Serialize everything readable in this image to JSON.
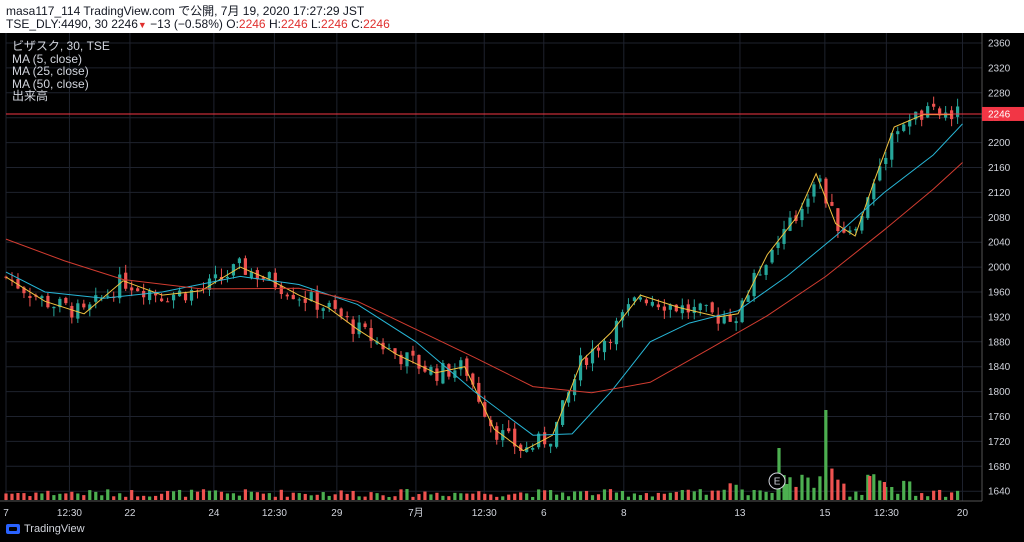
{
  "header": {
    "publish_line": "masa117_114 TradingView.com で公開, 7月 19, 2020 17:27:29 JST",
    "symbol": "TSE_DLY:4490, 30",
    "last": "2246",
    "change_arrow": "▼",
    "change": "−13 (−0.58%)",
    "o_label": "O:",
    "o_value": "2246",
    "h_label": "H:",
    "h_value": "2246",
    "l_label": "L:",
    "l_value": "2246",
    "c_label": "C:",
    "c_value": "2246"
  },
  "legend": {
    "title": "ビザスク, 30, TSE",
    "ma5": "MA (5, close)",
    "ma25": "MA (25, close)",
    "ma50": "MA (50, close)",
    "volume": "出来高"
  },
  "price_axis": {
    "ticks": [
      "2360",
      "2320",
      "2280",
      "2240",
      "2200",
      "2160",
      "2120",
      "2080",
      "2040",
      "2000",
      "1960",
      "1920",
      "1880",
      "1840",
      "1800",
      "1760",
      "1720",
      "1680",
      "1640"
    ],
    "last_price_label": "2246"
  },
  "time_axis": {
    "ticks": [
      "7",
      "12:30",
      "22",
      "24",
      "12:30",
      "29",
      "7月",
      "12:30",
      "6",
      "8",
      "13",
      "15",
      "12:30",
      "20"
    ]
  },
  "event_marker": {
    "label": "E"
  },
  "footer": {
    "brand": "TradingView"
  },
  "colors": {
    "up": "#26a69a",
    "down": "#ef5350",
    "vol_up": "#4caf50",
    "vol_down": "#ef5350",
    "ma5": "#f0c240",
    "ma25": "#27b6d6",
    "ma50": "#d23c30",
    "last_line": "#f23645"
  },
  "chart_data": {
    "type": "candlestick",
    "ma_series": [
      {
        "name": "MA (5, close)",
        "points": [
          [
            0,
            1984
          ],
          [
            0.04,
            1945
          ],
          [
            0.08,
            1925
          ],
          [
            0.12,
            1978
          ],
          [
            0.16,
            1955
          ],
          [
            0.2,
            1962
          ],
          [
            0.24,
            2000
          ],
          [
            0.27,
            1980
          ],
          [
            0.3,
            1955
          ],
          [
            0.33,
            1935
          ],
          [
            0.36,
            1900
          ],
          [
            0.4,
            1860
          ],
          [
            0.44,
            1830
          ],
          [
            0.47,
            1840
          ],
          [
            0.5,
            1740
          ],
          [
            0.53,
            1705
          ],
          [
            0.56,
            1730
          ],
          [
            0.59,
            1850
          ],
          [
            0.62,
            1895
          ],
          [
            0.65,
            1955
          ],
          [
            0.69,
            1935
          ],
          [
            0.73,
            1920
          ],
          [
            0.75,
            1925
          ],
          [
            0.78,
            2020
          ],
          [
            0.81,
            2080
          ],
          [
            0.83,
            2150
          ],
          [
            0.85,
            2070
          ],
          [
            0.87,
            2050
          ],
          [
            0.89,
            2140
          ],
          [
            0.91,
            2225
          ],
          [
            0.94,
            2245
          ],
          [
            0.97,
            2245
          ]
        ]
      },
      {
        "name": "MA (25, close)",
        "points": [
          [
            0,
            1992
          ],
          [
            0.04,
            1960
          ],
          [
            0.1,
            1950
          ],
          [
            0.16,
            1960
          ],
          [
            0.24,
            1985
          ],
          [
            0.3,
            1972
          ],
          [
            0.36,
            1940
          ],
          [
            0.42,
            1880
          ],
          [
            0.48,
            1800
          ],
          [
            0.54,
            1730
          ],
          [
            0.58,
            1732
          ],
          [
            0.62,
            1800
          ],
          [
            0.66,
            1880
          ],
          [
            0.7,
            1910
          ],
          [
            0.75,
            1930
          ],
          [
            0.8,
            1985
          ],
          [
            0.85,
            2050
          ],
          [
            0.9,
            2120
          ],
          [
            0.95,
            2180
          ],
          [
            0.98,
            2230
          ]
        ]
      },
      {
        "name": "MA (50, close)",
        "points": [
          [
            0,
            2045
          ],
          [
            0.06,
            2010
          ],
          [
            0.12,
            1980
          ],
          [
            0.2,
            1965
          ],
          [
            0.3,
            1966
          ],
          [
            0.36,
            1945
          ],
          [
            0.42,
            1900
          ],
          [
            0.48,
            1855
          ],
          [
            0.54,
            1808
          ],
          [
            0.6,
            1798
          ],
          [
            0.66,
            1815
          ],
          [
            0.72,
            1868
          ],
          [
            0.78,
            1922
          ],
          [
            0.84,
            1985
          ],
          [
            0.9,
            2060
          ],
          [
            0.95,
            2125
          ],
          [
            0.98,
            2168
          ]
        ]
      }
    ],
    "price_range": [
      1620,
      2370
    ],
    "last_price": 2246
  }
}
